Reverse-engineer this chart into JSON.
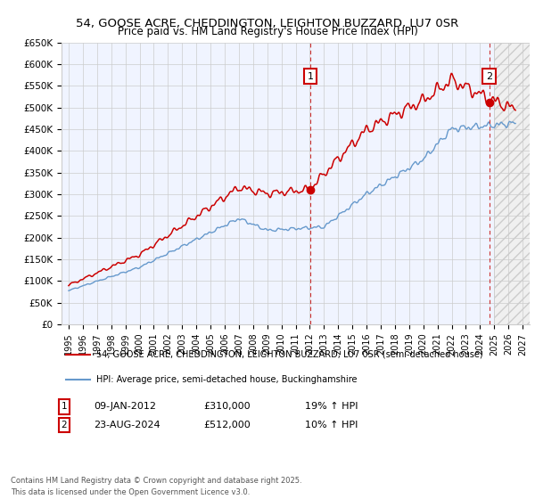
{
  "title": "54, GOOSE ACRE, CHEDDINGTON, LEIGHTON BUZZARD, LU7 0SR",
  "subtitle": "Price paid vs. HM Land Registry's House Price Index (HPI)",
  "ylim": [
    0,
    650000
  ],
  "xlim_start": 1994.5,
  "xlim_end": 2027.5,
  "yticks": [
    0,
    50000,
    100000,
    150000,
    200000,
    250000,
    300000,
    350000,
    400000,
    450000,
    500000,
    550000,
    600000,
    650000
  ],
  "ytick_labels": [
    "£0",
    "£50K",
    "£100K",
    "£150K",
    "£200K",
    "£250K",
    "£300K",
    "£350K",
    "£400K",
    "£450K",
    "£500K",
    "£550K",
    "£600K",
    "£650K"
  ],
  "red_line_label": "54, GOOSE ACRE, CHEDDINGTON, LEIGHTON BUZZARD, LU7 0SR (semi-detached house)",
  "blue_line_label": "HPI: Average price, semi-detached house, Buckinghamshire",
  "sale1_date": 2012.033,
  "sale1_price": 310000,
  "sale2_date": 2024.644,
  "sale2_price": 512000,
  "sale1_date_str": "09-JAN-2012",
  "sale1_price_str": "£310,000",
  "sale1_hpi_str": "19% ↑ HPI",
  "sale2_date_str": "23-AUG-2024",
  "sale2_price_str": "£512,000",
  "sale2_hpi_str": "10% ↑ HPI",
  "red_color": "#cc0000",
  "blue_color": "#6699cc",
  "background_color": "#ffffff",
  "grid_color": "#cccccc",
  "future_shade_start": 2025.0,
  "footnote": "Contains HM Land Registry data © Crown copyright and database right 2025.\nThis data is licensed under the Open Government Licence v3.0.",
  "xticks": [
    1995,
    1996,
    1997,
    1998,
    1999,
    2000,
    2001,
    2002,
    2003,
    2004,
    2005,
    2006,
    2007,
    2008,
    2009,
    2010,
    2011,
    2012,
    2013,
    2014,
    2015,
    2016,
    2017,
    2018,
    2019,
    2020,
    2021,
    2022,
    2023,
    2024,
    2025,
    2026,
    2027
  ]
}
